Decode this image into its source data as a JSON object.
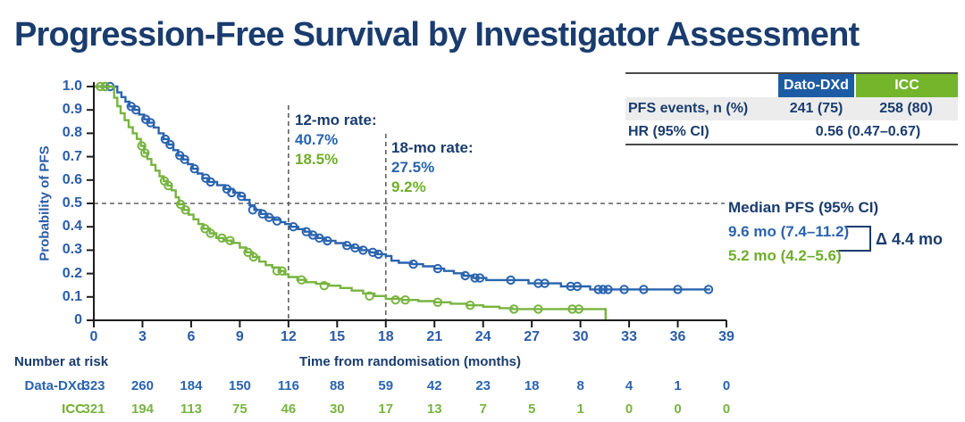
{
  "title": "Progression-Free Survival by Investigator Assessment",
  "colors": {
    "navy": "#1A3C6E",
    "blue": "#2A64AE",
    "green": "#77B43F",
    "tick_blue": "#2A5CA8",
    "header_blue": "#1D5CA4",
    "header_green": "#74B52C",
    "row_gray": "#ECECEC",
    "axis_black": "#1c1c1c",
    "dashed_gray": "#5f5f5f"
  },
  "summary_table": {
    "col1": "Dato-DXd",
    "col2": "ICC",
    "row1_label": "PFS events, n (%)",
    "row1_v1": "241 (75)",
    "row1_v2": "258 (80)",
    "row2_label": "HR (95% CI)",
    "row2_value": "0.56 (0.47–0.67)"
  },
  "annotations": {
    "rate12_label": "12-mo rate:",
    "rate12_blue": "40.7%",
    "rate12_green": "18.5%",
    "rate18_label": "18-mo rate:",
    "rate18_blue": "27.5%",
    "rate18_green": "9.2%",
    "median_title": "Median PFS (95% CI)",
    "median_blue": "9.6 mo (7.4–11.2)",
    "median_green": "5.2 mo (4.2–5.6)",
    "delta": "Δ 4.4 mo"
  },
  "axes": {
    "y_label": "Probability of PFS",
    "x_label": "Time from randomisation (months)",
    "y_ticks": [
      {
        "label": "1.0",
        "value": 1.0
      },
      {
        "label": "0.9",
        "value": 0.9
      },
      {
        "label": "0.8",
        "value": 0.8
      },
      {
        "label": "0.7",
        "value": 0.7
      },
      {
        "label": "0.6",
        "value": 0.6
      },
      {
        "label": "0.5",
        "value": 0.5
      },
      {
        "label": "0.4",
        "value": 0.4
      },
      {
        "label": "0.3",
        "value": 0.3
      },
      {
        "label": "0.2",
        "value": 0.2
      },
      {
        "label": "0.1",
        "value": 0.1
      },
      {
        "label": "0",
        "value": 0
      }
    ],
    "x_ticks": [
      0,
      3,
      6,
      9,
      12,
      15,
      18,
      21,
      24,
      27,
      30,
      33,
      36,
      39
    ]
  },
  "risk_table": {
    "title": "Number at risk",
    "rows": [
      {
        "label": "Data-DXd",
        "color_key": "blue",
        "values": [
          323,
          260,
          184,
          150,
          116,
          88,
          59,
          42,
          23,
          18,
          8,
          4,
          1,
          0
        ]
      },
      {
        "label": "ICC",
        "color_key": "green",
        "values": [
          321,
          194,
          113,
          75,
          46,
          30,
          17,
          13,
          7,
          5,
          1,
          0,
          0,
          0
        ]
      }
    ]
  },
  "chart_data": {
    "type": "line",
    "subtype": "kaplan_meier_step",
    "title": "Progression-Free Survival by Investigator Assessment",
    "xlabel": "Time from randomisation (months)",
    "ylabel": "Probability of PFS",
    "xlim": [
      0,
      39
    ],
    "ylim": [
      0,
      1
    ],
    "grid": false,
    "legend_position": "none",
    "reference_lines": {
      "horizontal_y": 0.5,
      "vertical_x": [
        12,
        18
      ]
    },
    "key_stats": {
      "rate_12mo": {
        "Dato-DXd": 0.407,
        "ICC": 0.185
      },
      "rate_18mo": {
        "Dato-DXd": 0.275,
        "ICC": 0.092
      },
      "median_months": {
        "Dato-DXd": 9.6,
        "ICC": 5.2
      },
      "median_ci": {
        "Dato-DXd": [
          7.4,
          11.2
        ],
        "ICC": [
          4.2,
          5.6
        ]
      },
      "hr": 0.56,
      "hr_ci": [
        0.47,
        0.67
      ],
      "pfs_events": {
        "Dato-DXd": "241 (75)",
        "ICC": "258 (80)"
      },
      "delta_median_months": 4.4
    },
    "series": [
      {
        "name": "Dato-DXd",
        "color": "#2A64AE",
        "steps": [
          [
            0,
            1
          ],
          [
            1.2,
            1
          ],
          [
            1.45,
            0.975
          ],
          [
            1.7,
            0.955
          ],
          [
            1.95,
            0.935
          ],
          [
            2.2,
            0.915
          ],
          [
            2.5,
            0.9
          ],
          [
            2.8,
            0.88
          ],
          [
            3.1,
            0.86
          ],
          [
            3.4,
            0.845
          ],
          [
            3.7,
            0.825
          ],
          [
            4,
            0.8
          ],
          [
            4.3,
            0.775
          ],
          [
            4.6,
            0.752
          ],
          [
            4.9,
            0.728
          ],
          [
            5.2,
            0.705
          ],
          [
            5.5,
            0.688
          ],
          [
            5.8,
            0.668
          ],
          [
            6.1,
            0.648
          ],
          [
            6.4,
            0.628
          ],
          [
            6.7,
            0.608
          ],
          [
            7.1,
            0.592
          ],
          [
            7.6,
            0.578
          ],
          [
            8.1,
            0.562
          ],
          [
            8.6,
            0.546
          ],
          [
            9,
            0.53
          ],
          [
            9.3,
            0.515
          ],
          [
            9.6,
            0.492
          ],
          [
            9.9,
            0.472
          ],
          [
            10.3,
            0.455
          ],
          [
            10.7,
            0.44
          ],
          [
            11.1,
            0.43
          ],
          [
            11.5,
            0.42
          ],
          [
            11.8,
            0.412
          ],
          [
            12.15,
            0.4
          ],
          [
            12.6,
            0.39
          ],
          [
            13,
            0.379
          ],
          [
            13.4,
            0.365
          ],
          [
            13.8,
            0.352
          ],
          [
            14.3,
            0.34
          ],
          [
            14.9,
            0.33
          ],
          [
            15.5,
            0.32
          ],
          [
            16,
            0.31
          ],
          [
            16.5,
            0.3
          ],
          [
            17,
            0.291
          ],
          [
            17.5,
            0.283
          ],
          [
            18,
            0.275
          ],
          [
            18.35,
            0.255
          ],
          [
            18.8,
            0.246
          ],
          [
            19.6,
            0.24
          ],
          [
            20.3,
            0.231
          ],
          [
            21,
            0.221
          ],
          [
            21.6,
            0.211
          ],
          [
            22.2,
            0.201
          ],
          [
            22.8,
            0.191
          ],
          [
            23.4,
            0.181
          ],
          [
            24.2,
            0.172
          ],
          [
            26.8,
            0.158
          ],
          [
            28.8,
            0.145
          ],
          [
            30.6,
            0.132
          ],
          [
            38,
            0.132
          ]
        ],
        "censors": [
          [
            0.7,
            1
          ],
          [
            1,
            1
          ],
          [
            2.3,
            0.915
          ],
          [
            2.6,
            0.9
          ],
          [
            3.2,
            0.86
          ],
          [
            3.5,
            0.845
          ],
          [
            4.4,
            0.775
          ],
          [
            4.7,
            0.752
          ],
          [
            5.3,
            0.705
          ],
          [
            5.6,
            0.688
          ],
          [
            6.2,
            0.648
          ],
          [
            6.9,
            0.608
          ],
          [
            7.2,
            0.592
          ],
          [
            8.2,
            0.562
          ],
          [
            8.5,
            0.546
          ],
          [
            9.1,
            0.53
          ],
          [
            9.8,
            0.472
          ],
          [
            10.4,
            0.455
          ],
          [
            10.8,
            0.44
          ],
          [
            11.3,
            0.425
          ],
          [
            12.3,
            0.4
          ],
          [
            13.1,
            0.379
          ],
          [
            13.5,
            0.365
          ],
          [
            13.9,
            0.352
          ],
          [
            14.4,
            0.34
          ],
          [
            15.6,
            0.32
          ],
          [
            16.1,
            0.31
          ],
          [
            16.6,
            0.3
          ],
          [
            17.2,
            0.291
          ],
          [
            17.55,
            0.283
          ],
          [
            19.7,
            0.24
          ],
          [
            21.2,
            0.221
          ],
          [
            22.9,
            0.191
          ],
          [
            23.5,
            0.181
          ],
          [
            23.8,
            0.181
          ],
          [
            25.7,
            0.172
          ],
          [
            27.4,
            0.158
          ],
          [
            27.8,
            0.158
          ],
          [
            29.4,
            0.145
          ],
          [
            29.8,
            0.145
          ],
          [
            31.1,
            0.132
          ],
          [
            31.4,
            0.132
          ],
          [
            31.7,
            0.132
          ],
          [
            32.7,
            0.132
          ],
          [
            33.9,
            0.132
          ],
          [
            36,
            0.132
          ],
          [
            37.9,
            0.132
          ]
        ]
      },
      {
        "name": "ICC",
        "color": "#77B43F",
        "steps": [
          [
            0,
            1
          ],
          [
            1.05,
            1
          ],
          [
            1.25,
            0.952
          ],
          [
            1.45,
            0.916
          ],
          [
            1.65,
            0.886
          ],
          [
            1.9,
            0.856
          ],
          [
            2.15,
            0.826
          ],
          [
            2.4,
            0.8
          ],
          [
            2.65,
            0.776
          ],
          [
            2.9,
            0.746
          ],
          [
            3.1,
            0.716
          ],
          [
            3.3,
            0.69
          ],
          [
            3.55,
            0.665
          ],
          [
            3.8,
            0.64
          ],
          [
            4.05,
            0.616
          ],
          [
            4.3,
            0.596
          ],
          [
            4.55,
            0.576
          ],
          [
            4.8,
            0.556
          ],
          [
            5.05,
            0.526
          ],
          [
            5.25,
            0.496
          ],
          [
            5.55,
            0.472
          ],
          [
            5.85,
            0.452
          ],
          [
            6.15,
            0.432
          ],
          [
            6.45,
            0.412
          ],
          [
            6.75,
            0.392
          ],
          [
            7.15,
            0.372
          ],
          [
            7.55,
            0.352
          ],
          [
            8,
            0.341
          ],
          [
            8.5,
            0.331
          ],
          [
            9,
            0.311
          ],
          [
            9.4,
            0.291
          ],
          [
            9.8,
            0.271
          ],
          [
            10.2,
            0.251
          ],
          [
            10.6,
            0.236
          ],
          [
            11,
            0.226
          ],
          [
            11.4,
            0.211
          ],
          [
            11.75,
            0.197
          ],
          [
            12,
            0.185
          ],
          [
            12.55,
            0.173
          ],
          [
            13.1,
            0.163
          ],
          [
            13.7,
            0.156
          ],
          [
            14.5,
            0.148
          ],
          [
            15.2,
            0.138
          ],
          [
            15.9,
            0.127
          ],
          [
            16.6,
            0.115
          ],
          [
            17.3,
            0.104
          ],
          [
            18,
            0.092
          ],
          [
            19,
            0.087
          ],
          [
            20,
            0.082
          ],
          [
            21,
            0.077
          ],
          [
            22,
            0.071
          ],
          [
            23,
            0.064
          ],
          [
            24,
            0.058
          ],
          [
            25,
            0.052
          ],
          [
            25.8,
            0.048
          ],
          [
            31.55,
            0.048
          ],
          [
            31.55,
            0
          ]
        ],
        "censors": [
          [
            0.4,
            1
          ],
          [
            0.7,
            1
          ],
          [
            2.95,
            0.746
          ],
          [
            3.15,
            0.716
          ],
          [
            4.35,
            0.596
          ],
          [
            4.6,
            0.576
          ],
          [
            5.35,
            0.496
          ],
          [
            5.65,
            0.472
          ],
          [
            6.85,
            0.392
          ],
          [
            7.2,
            0.372
          ],
          [
            7.9,
            0.352
          ],
          [
            8.4,
            0.341
          ],
          [
            9.5,
            0.291
          ],
          [
            9.85,
            0.271
          ],
          [
            11.3,
            0.211
          ],
          [
            11.6,
            0.211
          ],
          [
            12.8,
            0.173
          ],
          [
            14.2,
            0.148
          ],
          [
            17,
            0.104
          ],
          [
            18.6,
            0.087
          ],
          [
            19.2,
            0.087
          ],
          [
            21.2,
            0.077
          ],
          [
            23.2,
            0.064
          ],
          [
            25.9,
            0.048
          ],
          [
            27.4,
            0.048
          ],
          [
            29.5,
            0.048
          ],
          [
            29.9,
            0.048
          ]
        ]
      }
    ]
  }
}
